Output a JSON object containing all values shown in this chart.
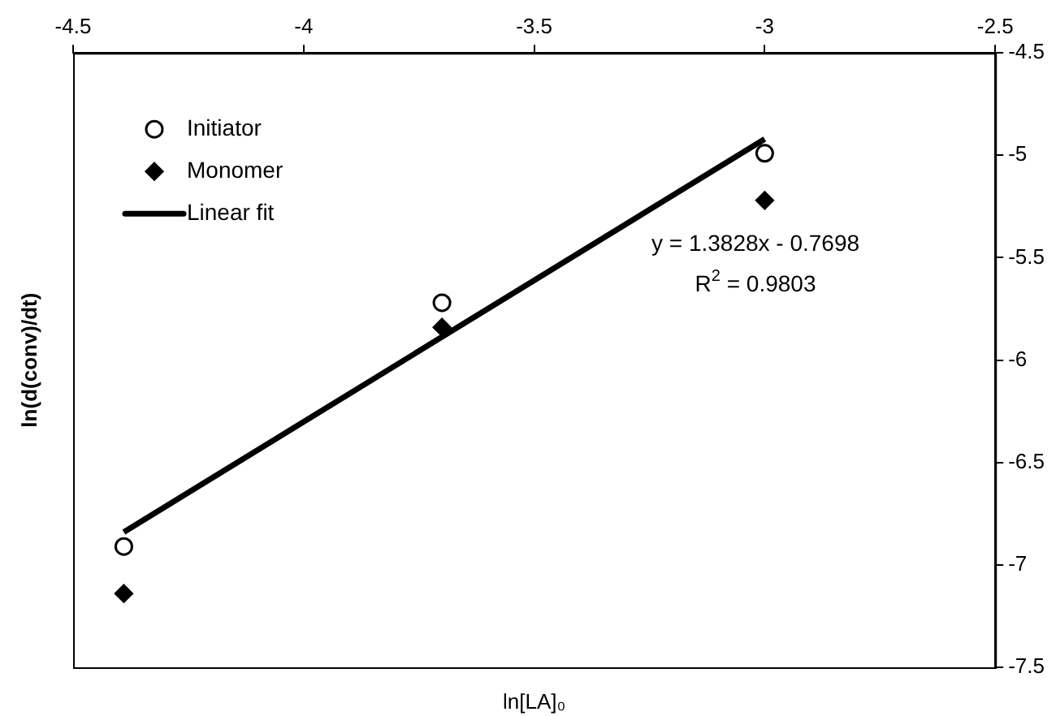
{
  "chart_data": {
    "type": "scatter",
    "xlabel": "ln[LA]₀",
    "ylabel": "ln(d(conv)/dt)",
    "xlim": [
      -4.5,
      -2.5
    ],
    "xticks": [
      -4.5,
      -4,
      -3.5,
      -3,
      -2.5
    ],
    "ylim": [
      -7.5,
      -4.5
    ],
    "yticks": [
      -7.5,
      -7,
      -6.5,
      -6,
      -5.5,
      -5,
      -4.5
    ],
    "grid": false,
    "legend": "top left",
    "series": [
      {
        "name": "Initiator",
        "marker": "circle",
        "color": "#000000",
        "x": [
          -4.39,
          -3.7,
          -3.0
        ],
        "values": [
          -6.91,
          -5.72,
          -4.99
        ]
      },
      {
        "name": "Monomer",
        "marker": "diamond",
        "color": "#000000",
        "x": [
          -4.39,
          -3.7,
          -3.0
        ],
        "values": [
          -7.14,
          -5.84,
          -5.22
        ]
      },
      {
        "name": "Linear fit",
        "type": "line",
        "marker": "none",
        "color": "#000000",
        "x": [
          -4.39,
          -3.0
        ],
        "values": [
          -6.84,
          -4.92
        ]
      }
    ],
    "annotations": [
      "y = 1.3828x - 0.7698",
      "R$^{2}$ = 0.9803"
    ]
  }
}
